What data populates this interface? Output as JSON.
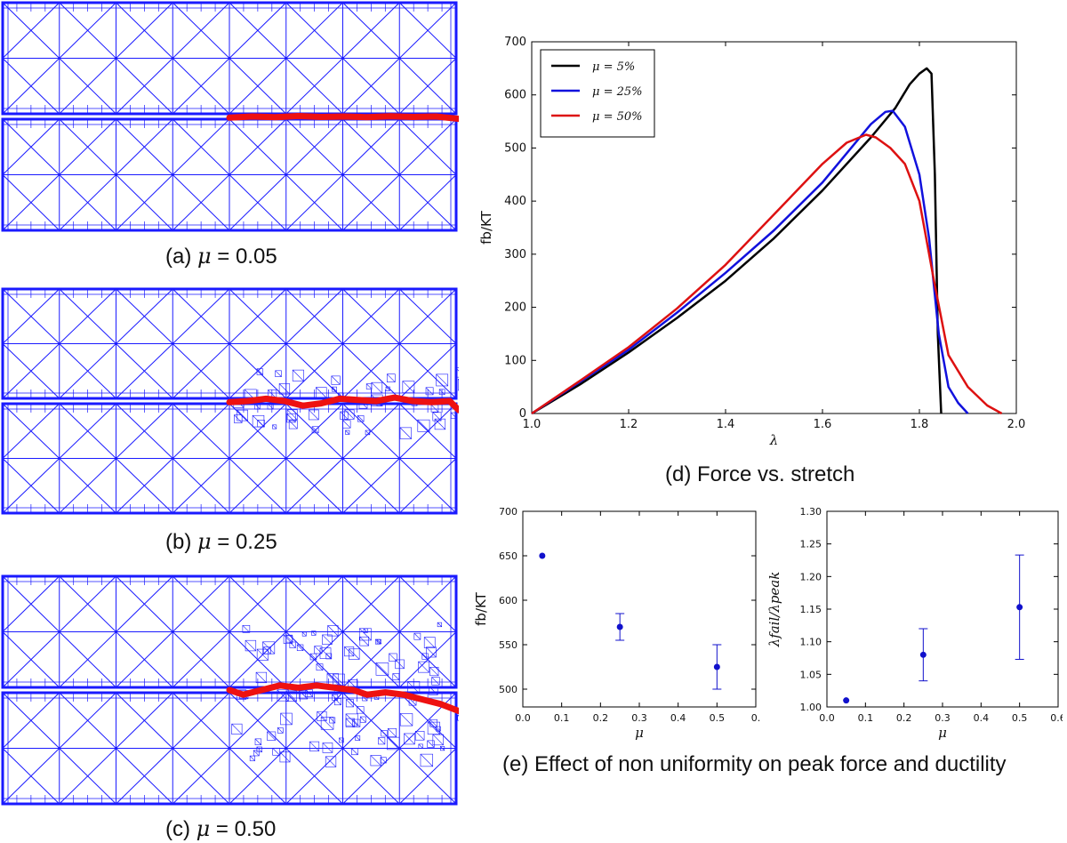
{
  "colors": {
    "mesh": "#1a1aff",
    "crack": "#ee1111",
    "c5": "#000000",
    "c25": "#1111dd",
    "c50": "#dd1111",
    "marker": "#1111cc"
  },
  "meshes": [
    {
      "caption_prefix": "(a) ",
      "mu_symbol": "μ",
      "caption_value": " = 0.05",
      "crack": [
        [
          0.5,
          0.505
        ],
        [
          0.55,
          0.5
        ],
        [
          0.6,
          0.503
        ],
        [
          0.65,
          0.498
        ],
        [
          0.7,
          0.502
        ],
        [
          0.75,
          0.5
        ],
        [
          0.8,
          0.503
        ],
        [
          0.85,
          0.499
        ],
        [
          0.9,
          0.502
        ],
        [
          0.95,
          0.5
        ],
        [
          1.0,
          0.51
        ]
      ],
      "refine": 0.0
    },
    {
      "caption_prefix": "(b) ",
      "mu_symbol": "μ",
      "caption_value": " = 0.25",
      "crack": [
        [
          0.5,
          0.505
        ],
        [
          0.54,
          0.5
        ],
        [
          0.58,
          0.49
        ],
        [
          0.62,
          0.5
        ],
        [
          0.66,
          0.52
        ],
        [
          0.7,
          0.51
        ],
        [
          0.74,
          0.49
        ],
        [
          0.78,
          0.495
        ],
        [
          0.82,
          0.5
        ],
        [
          0.86,
          0.485
        ],
        [
          0.9,
          0.5
        ],
        [
          0.94,
          0.505
        ],
        [
          0.98,
          0.5
        ],
        [
          1.0,
          0.54
        ]
      ],
      "refine": 0.35
    },
    {
      "caption_prefix": "(c) ",
      "mu_symbol": "μ",
      "caption_value": " = 0.50",
      "crack": [
        [
          0.5,
          0.5
        ],
        [
          0.53,
          0.52
        ],
        [
          0.57,
          0.5
        ],
        [
          0.61,
          0.48
        ],
        [
          0.65,
          0.49
        ],
        [
          0.69,
          0.48
        ],
        [
          0.73,
          0.49
        ],
        [
          0.77,
          0.5
        ],
        [
          0.8,
          0.52
        ],
        [
          0.84,
          0.51
        ],
        [
          0.88,
          0.52
        ],
        [
          0.92,
          0.54
        ],
        [
          0.96,
          0.56
        ],
        [
          1.0,
          0.59
        ]
      ],
      "refine": 0.7
    }
  ],
  "chart_data": [
    {
      "type": "line",
      "caption": "(d) Force vs. stretch",
      "xlabel": "λ",
      "ylabel": "fb/KT",
      "xlim": [
        1.0,
        2.0
      ],
      "ylim": [
        0,
        700
      ],
      "xticks": [
        "1.0",
        "1.2",
        "1.4",
        "1.6",
        "1.8",
        "2.0"
      ],
      "yticks": [
        "0",
        "100",
        "200",
        "300",
        "400",
        "500",
        "600",
        "700"
      ],
      "legend_position": "top-left",
      "series": [
        {
          "name": "μ = 5%",
          "legend_label": "μ = 5%",
          "color_key": "c5",
          "x": [
            1.0,
            1.1,
            1.2,
            1.3,
            1.4,
            1.5,
            1.6,
            1.7,
            1.75,
            1.78,
            1.8,
            1.815,
            1.825,
            1.832,
            1.838,
            1.845
          ],
          "y": [
            0,
            55,
            115,
            180,
            250,
            330,
            420,
            520,
            575,
            620,
            640,
            650,
            640,
            450,
            150,
            0
          ]
        },
        {
          "name": "μ = 25%",
          "legend_label": "μ = 25%",
          "color_key": "c25",
          "x": [
            1.0,
            1.1,
            1.2,
            1.3,
            1.4,
            1.5,
            1.6,
            1.65,
            1.7,
            1.73,
            1.745,
            1.77,
            1.8,
            1.82,
            1.84,
            1.86,
            1.88,
            1.9
          ],
          "y": [
            0,
            60,
            120,
            190,
            265,
            345,
            435,
            490,
            545,
            568,
            570,
            540,
            450,
            330,
            150,
            50,
            20,
            0
          ]
        },
        {
          "name": "μ = 50%",
          "legend_label": "μ = 50%",
          "color_key": "c50",
          "x": [
            1.0,
            1.1,
            1.2,
            1.3,
            1.4,
            1.5,
            1.6,
            1.65,
            1.69,
            1.71,
            1.74,
            1.77,
            1.8,
            1.83,
            1.86,
            1.9,
            1.94,
            1.97
          ],
          "y": [
            0,
            62,
            125,
            198,
            280,
            375,
            470,
            510,
            525,
            520,
            500,
            470,
            400,
            250,
            110,
            50,
            15,
            0
          ]
        }
      ]
    },
    {
      "type": "scatter",
      "caption": "(e) Effect of non uniformity on peak force and ductility",
      "xlabel": "μ",
      "ylabel": "fb/KT",
      "xlim": [
        0.0,
        0.6
      ],
      "ylim": [
        480,
        700
      ],
      "xticks": [
        "0.0",
        "0.1",
        "0.2",
        "0.3",
        "0.4",
        "0.5",
        "0."
      ],
      "yticks": [
        "500",
        "550",
        "600",
        "650",
        "700"
      ],
      "x": [
        0.05,
        0.25,
        0.5
      ],
      "y": [
        650,
        570,
        525
      ],
      "err": [
        0,
        15,
        25
      ]
    },
    {
      "type": "scatter",
      "xlabel": "μ",
      "ylabel": "λfail/λpeak",
      "xlim": [
        0.0,
        0.6
      ],
      "ylim": [
        1.0,
        1.3
      ],
      "xticks": [
        "0.0",
        "0.1",
        "0.2",
        "0.3",
        "0.4",
        "0.5",
        "0.6"
      ],
      "yticks": [
        "1.00",
        "1.05",
        "1.10",
        "1.15",
        "1.20",
        "1.25",
        "1.30"
      ],
      "x": [
        0.05,
        0.25,
        0.5
      ],
      "y": [
        1.01,
        1.08,
        1.153
      ],
      "err": [
        0,
        0.04,
        0.08
      ]
    }
  ]
}
